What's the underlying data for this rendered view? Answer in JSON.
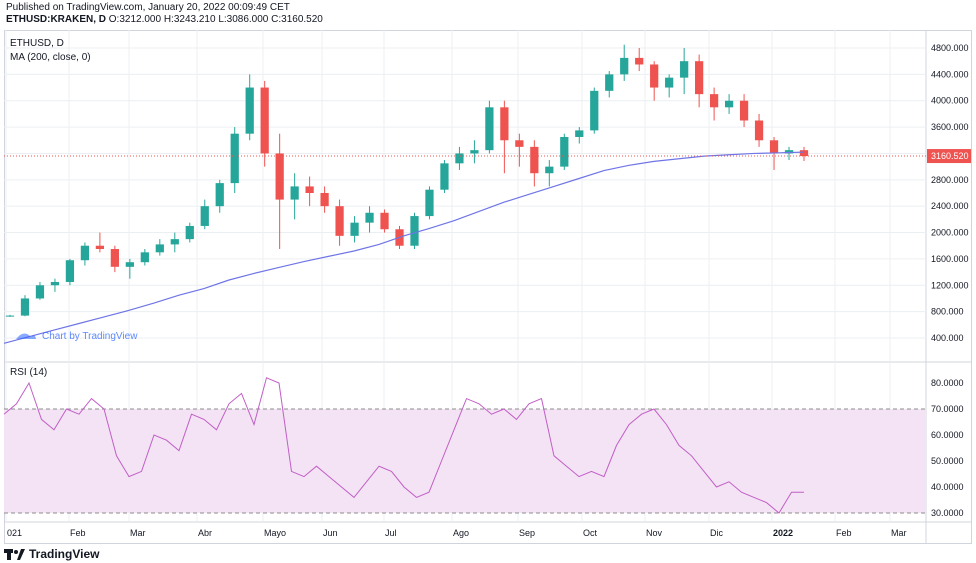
{
  "header": {
    "published": "Published on TradingView.com, January 20, 2022 00:09:49 CET",
    "symbol": "ETHUSD:KRAKEN, D",
    "ohlc": "O:3212.000 H:3243.210 L:3086.000 C:3160.520"
  },
  "legend": {
    "symbol": "ETHUSD, D",
    "ma": "MA (200, close, 0)",
    "rsi": "RSI (14)"
  },
  "watermark": "Chart by TradingView",
  "footer": {
    "brand": "TradingView"
  },
  "colors": {
    "up": "#26a69a",
    "down": "#ef5350",
    "ma": "#6f75e6",
    "rsi": "#c15fc6",
    "rsi_band": "#f3e3f4",
    "price_line": "#ef5350",
    "grid": "#eceff2",
    "axis_text": "#131722"
  },
  "chart_data": [
    {
      "type": "candlestick",
      "series": [
        {
          "name": "ETHUSD, D",
          "values": [
            [
              730,
              750,
              720,
              740
            ],
            [
              740,
              1050,
              730,
              1000
            ],
            [
              1000,
              1250,
              980,
              1200
            ],
            [
              1200,
              1300,
              1100,
              1250
            ],
            [
              1250,
              1600,
              1200,
              1580
            ],
            [
              1580,
              1850,
              1500,
              1800
            ],
            [
              1800,
              2000,
              1700,
              1750
            ],
            [
              1750,
              1800,
              1400,
              1480
            ],
            [
              1480,
              1600,
              1300,
              1550
            ],
            [
              1550,
              1750,
              1500,
              1700
            ],
            [
              1700,
              1900,
              1650,
              1820
            ],
            [
              1820,
              2000,
              1700,
              1900
            ],
            [
              1900,
              2150,
              1850,
              2100
            ],
            [
              2100,
              2500,
              2050,
              2400
            ],
            [
              2400,
              2800,
              2300,
              2750
            ],
            [
              2750,
              3600,
              2600,
              3500
            ],
            [
              3500,
              4400,
              3400,
              4200
            ],
            [
              4200,
              4300,
              3000,
              3200
            ],
            [
              3200,
              3500,
              1750,
              2500
            ],
            [
              2500,
              2900,
              2200,
              2700
            ],
            [
              2700,
              2850,
              2400,
              2600
            ],
            [
              2600,
              2700,
              2300,
              2400
            ],
            [
              2400,
              2500,
              1800,
              1950
            ],
            [
              1950,
              2250,
              1850,
              2150
            ],
            [
              2150,
              2400,
              2000,
              2300
            ],
            [
              2300,
              2350,
              2000,
              2050
            ],
            [
              2050,
              2100,
              1750,
              1800
            ],
            [
              1800,
              2300,
              1750,
              2250
            ],
            [
              2250,
              2700,
              2200,
              2650
            ],
            [
              2650,
              3100,
              2600,
              3050
            ],
            [
              3050,
              3300,
              2950,
              3200
            ],
            [
              3200,
              3400,
              3050,
              3250
            ],
            [
              3250,
              4000,
              3200,
              3900
            ],
            [
              3900,
              4000,
              2900,
              3400
            ],
            [
              3400,
              3500,
              3000,
              3300
            ],
            [
              3300,
              3400,
              2700,
              2900
            ],
            [
              2900,
              3100,
              2700,
              3000
            ],
            [
              3000,
              3500,
              2950,
              3450
            ],
            [
              3450,
              3600,
              3350,
              3550
            ],
            [
              3550,
              4200,
              3500,
              4150
            ],
            [
              4150,
              4450,
              4050,
              4400
            ],
            [
              4400,
              4850,
              4300,
              4650
            ],
            [
              4650,
              4800,
              4450,
              4550
            ],
            [
              4550,
              4600,
              4000,
              4200
            ],
            [
              4200,
              4400,
              4050,
              4350
            ],
            [
              4350,
              4800,
              4100,
              4600
            ],
            [
              4600,
              4700,
              3900,
              4100
            ],
            [
              4100,
              4200,
              3700,
              3900
            ],
            [
              3900,
              4100,
              3800,
              4000
            ],
            [
              4000,
              4100,
              3600,
              3700
            ],
            [
              3700,
              3800,
              3300,
              3400
            ],
            [
              3400,
              3450,
              2950,
              3200
            ],
            [
              3200,
              3300,
              3100,
              3250
            ],
            [
              3250,
              3300,
              3086,
              3160.52
            ]
          ]
        }
      ],
      "ylim": [
        200,
        4950
      ],
      "yticks": [
        "4800.000",
        "4400.000",
        "4000.000",
        "3600.000",
        "3200.000",
        "2800.000",
        "2400.000",
        "2000.000",
        "1600.000",
        "1200.000",
        "800.000",
        "400.000"
      ],
      "xticks": [
        "021",
        "Feb",
        "Mar",
        "Abr",
        "Mayo",
        "Jun",
        "Jul",
        "Ago",
        "Sep",
        "Oct",
        "Nov",
        "Dic",
        "2022",
        "Feb",
        "Mar"
      ],
      "last_price": "3160.520"
    },
    {
      "type": "line",
      "series": [
        {
          "name": "MA (200, close, 0)",
          "values": [
            320,
            420,
            520,
            620,
            720,
            820,
            930,
            1050,
            1150,
            1280,
            1380,
            1470,
            1560,
            1640,
            1720,
            1820,
            1950,
            2060,
            2180,
            2320,
            2460,
            2580,
            2700,
            2820,
            2940,
            3020,
            3080,
            3120,
            3160,
            3180,
            3200,
            3210,
            3220
          ]
        }
      ],
      "ylim": [
        200,
        4950
      ]
    },
    {
      "type": "line",
      "series": [
        {
          "name": "RSI (14)",
          "values": [
            68,
            72,
            80,
            66,
            62,
            70,
            68,
            74,
            70,
            52,
            44,
            46,
            60,
            58,
            54,
            68,
            66,
            62,
            72,
            76,
            64,
            82,
            80,
            46,
            44,
            48,
            44,
            40,
            36,
            42,
            48,
            46,
            40,
            36,
            38,
            50,
            62,
            74,
            72,
            68,
            70,
            66,
            72,
            74,
            52,
            48,
            44,
            46,
            44,
            56,
            64,
            68,
            70,
            64,
            56,
            52,
            46,
            40,
            42,
            38,
            36,
            34,
            30,
            38,
            38
          ]
        }
      ],
      "ylim": [
        27,
        86
      ],
      "yticks": [
        "80.0000",
        "70.0000",
        "60.0000",
        "50.0000",
        "40.0000",
        "30.0000"
      ],
      "bands": [
        30,
        70
      ]
    }
  ]
}
